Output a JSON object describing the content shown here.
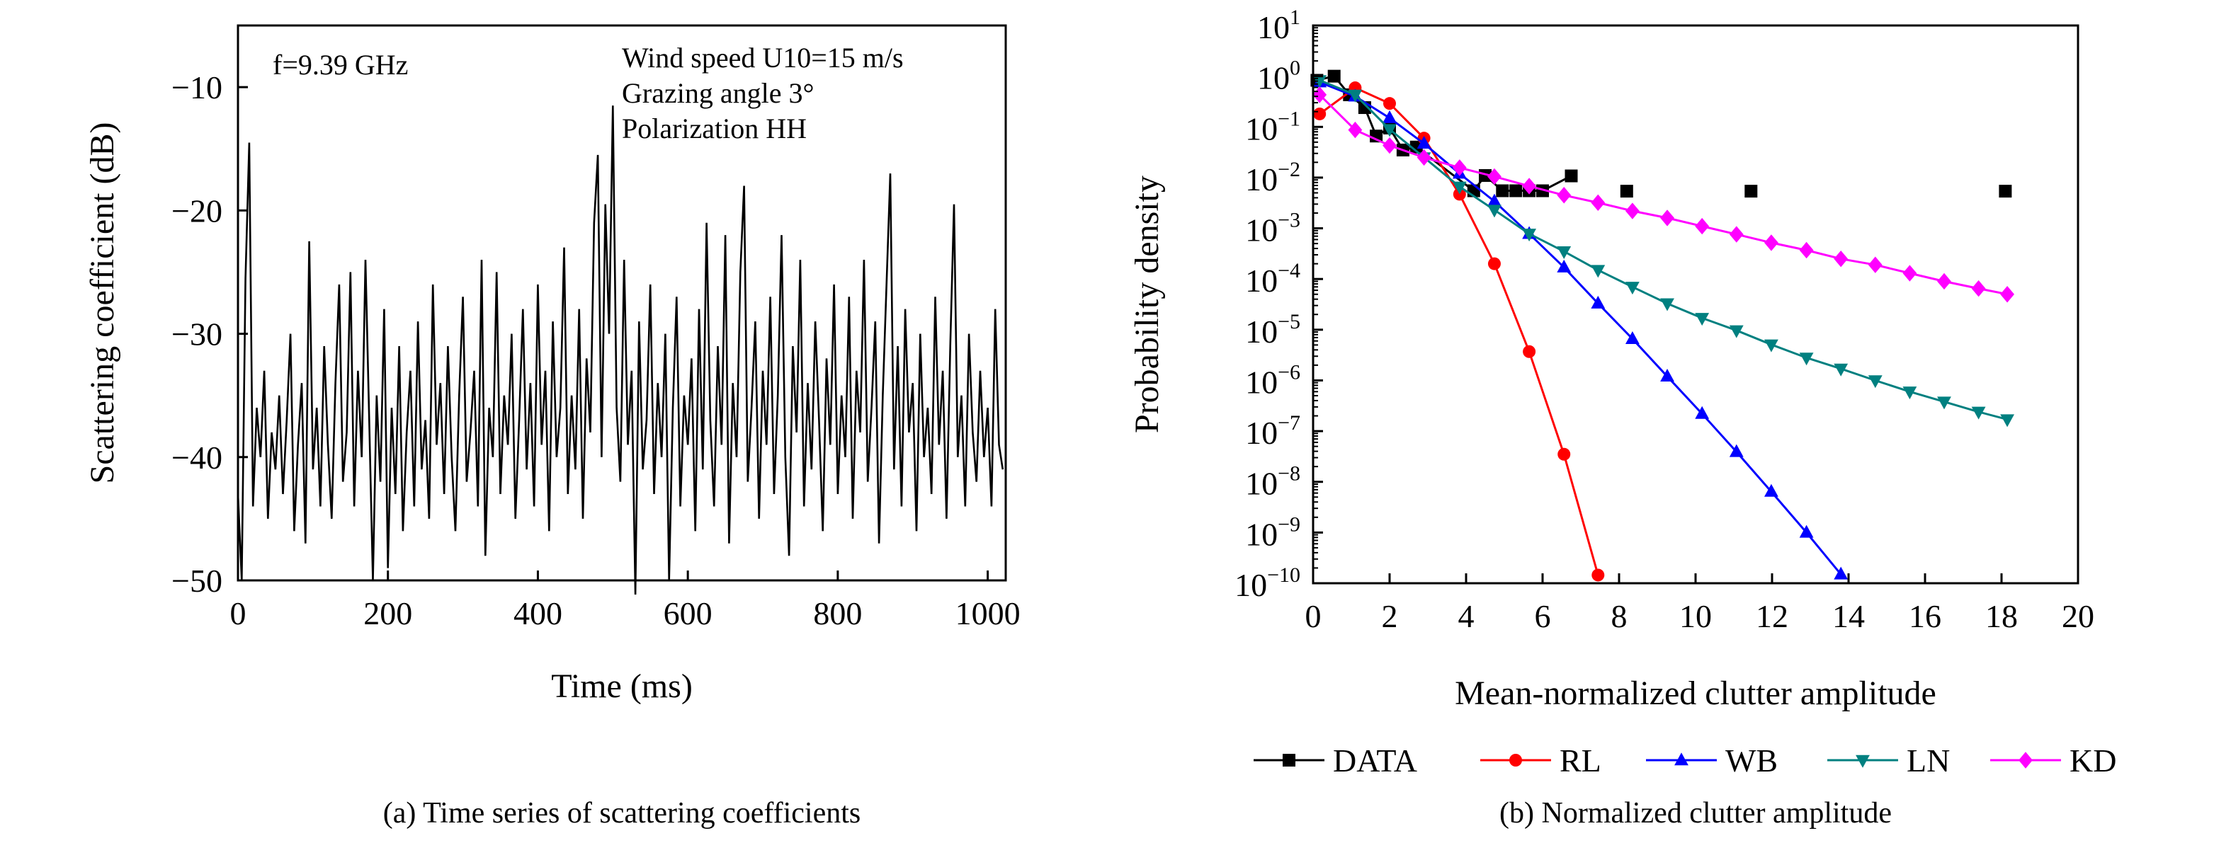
{
  "chart_data": [
    {
      "type": "line",
      "caption": "(a) Time series of scattering coefficients",
      "xlabel": "Time (ms)",
      "ylabel": "Scattering coefficient (dB)",
      "xlim": [
        0,
        1024
      ],
      "ylim": [
        -50,
        -5
      ],
      "xticks": [
        0,
        200,
        400,
        600,
        800,
        1000
      ],
      "xtick_labels": [
        "0",
        "200",
        "400",
        "600",
        "800",
        "1000"
      ],
      "yticks": [
        -10,
        -20,
        -30,
        -40,
        -50
      ],
      "ytick_labels": [
        "−10",
        "−20",
        "−30",
        "−40",
        "−50"
      ],
      "annotations": {
        "frequency": "f=9.39 GHz",
        "wind": "Wind speed U10=15 m/s",
        "grazing": "Grazing angle 3°",
        "polarization": "Polarization HH"
      },
      "x_range": [
        0,
        1020
      ],
      "values": [
        -43,
        -50,
        -25.5,
        -14.5,
        -44,
        -36,
        -40,
        -33,
        -45,
        -38,
        -41,
        -35,
        -43,
        -37,
        -30,
        -46,
        -39,
        -34,
        -47,
        -22.5,
        -41,
        -36,
        -44,
        -31,
        -39,
        -45,
        -34,
        -26,
        -42,
        -38,
        -25,
        -44,
        -33,
        -40,
        -24,
        -37,
        -50,
        -35,
        -42,
        -28,
        -49,
        -36,
        -43,
        -31,
        -46,
        -38,
        -33,
        -44,
        -29,
        -41,
        -37,
        -45,
        -26,
        -39,
        -34,
        -43,
        -31,
        -40,
        -46,
        -35,
        -27,
        -42,
        -38,
        -33,
        -44,
        -24,
        -48,
        -36,
        -40,
        -25,
        -43,
        -35,
        -39,
        -30,
        -45,
        -37,
        -28,
        -41,
        -34,
        -44,
        -26,
        -39,
        -33,
        -46,
        -29,
        -40,
        -36,
        -23,
        -43,
        -35,
        -41,
        -28,
        -45,
        -32,
        -38,
        -21,
        -15.5,
        -40,
        -19.5,
        -30,
        -11.5,
        -36,
        -42,
        -24,
        -39,
        -33,
        -52,
        -29,
        -41,
        -37,
        -26,
        -43,
        -34,
        -40,
        -30,
        -50,
        -36,
        -27,
        -44,
        -35,
        -39,
        -32,
        -46,
        -28,
        -41,
        -21,
        -37,
        -44,
        -31,
        -39,
        -22,
        -47,
        -34,
        -40,
        -25,
        -18,
        -42,
        -36,
        -29,
        -45,
        -33,
        -39,
        -27,
        -43,
        -35,
        -22,
        -40,
        -48,
        -31,
        -38,
        -24,
        -44,
        -34,
        -41,
        -29,
        -37,
        -46,
        -32,
        -39,
        -26,
        -43,
        -35,
        -40,
        -27,
        -45,
        -33,
        -38,
        -24,
        -42,
        -36,
        -29,
        -47,
        -35,
        -26,
        -17,
        -41,
        -31,
        -44,
        -28,
        -38,
        -34,
        -46,
        -30,
        -40,
        -36,
        -43,
        -27,
        -39,
        -33,
        -45,
        -31,
        -19.5,
        -40,
        -35,
        -44,
        -30,
        -38,
        -42,
        -33,
        -40,
        -36,
        -44,
        -28,
        -39,
        -41
      ],
      "color": "#000000"
    },
    {
      "type": "line",
      "caption": "(b) Normalized clutter amplitude",
      "xlabel": "Mean-normalized clutter amplitude",
      "ylabel": "Probability density",
      "xlim": [
        0,
        20
      ],
      "ylim": [
        1e-10,
        10
      ],
      "yscale": "log",
      "xticks": [
        0,
        2,
        4,
        6,
        8,
        10,
        12,
        14,
        16,
        18,
        20
      ],
      "xtick_labels": [
        "0",
        "2",
        "4",
        "6",
        "8",
        "10",
        "12",
        "14",
        "16",
        "18",
        "20"
      ],
      "yticks_exp": [
        1,
        0,
        -1,
        -2,
        -3,
        -4,
        -5,
        -6,
        -7,
        -8,
        -9,
        -10
      ],
      "legend_position": "bottom",
      "series": [
        {
          "name": "DATA",
          "color": "#000000",
          "marker": "square",
          "x": [
            0.1,
            0.55,
            0.95,
            1.35,
            1.65,
            2.0,
            2.35,
            2.7,
            4.2,
            4.5,
            4.95,
            5.3,
            5.65,
            6.0,
            6.75,
            8.2,
            11.45,
            18.1
          ],
          "y": [
            0.83,
            1.0,
            0.43,
            0.24,
            0.066,
            0.095,
            0.035,
            0.04,
            0.0055,
            0.011,
            0.0055,
            0.0055,
            0.0055,
            0.0055,
            0.0108,
            0.0054,
            0.0054,
            0.0054
          ],
          "line_until": 6.9
        },
        {
          "name": "RL",
          "color": "#ff0000",
          "marker": "circle",
          "x": [
            0.17,
            1.1,
            2.0,
            2.9,
            3.83,
            4.74,
            5.65,
            6.56,
            7.45
          ],
          "y": [
            0.18,
            0.59,
            0.29,
            0.06,
            0.0047,
            0.0002,
            3.7e-06,
            3.5e-08,
            1.45e-10
          ]
        },
        {
          "name": "WB",
          "color": "#0000ff",
          "marker": "triangle-up",
          "x": [
            0.17,
            1.1,
            2.0,
            2.9,
            3.83,
            4.74,
            5.65,
            6.56,
            7.45,
            8.35,
            9.26,
            10.17,
            11.07,
            11.98,
            12.9,
            13.8
          ],
          "y": [
            0.76,
            0.4,
            0.15,
            0.047,
            0.012,
            0.0034,
            0.00078,
            0.00017,
            3.3e-05,
            6.6e-06,
            1.2e-06,
            2.2e-07,
            3.9e-08,
            6.4e-09,
            1e-09,
            1.5e-10
          ]
        },
        {
          "name": "LN",
          "color": "#008080",
          "marker": "triangle-down",
          "x": [
            0.17,
            1.1,
            2.0,
            2.9,
            3.83,
            4.74,
            5.65,
            6.56,
            7.45,
            8.35,
            9.26,
            10.17,
            11.07,
            11.98,
            12.9,
            13.8,
            14.7,
            15.6,
            16.5,
            17.4,
            18.15
          ],
          "y": [
            0.83,
            0.43,
            0.09,
            0.025,
            0.0066,
            0.0023,
            0.00078,
            0.00035,
            0.00015,
            7e-05,
            3.3e-05,
            1.7e-05,
            9.7e-06,
            5.1e-06,
            2.8e-06,
            1.7e-06,
            1e-06,
            6e-07,
            3.8e-07,
            2.4e-07,
            1.7e-07
          ]
        },
        {
          "name": "KD",
          "color": "#ff00ff",
          "marker": "diamond",
          "x": [
            0.17,
            1.1,
            2.0,
            2.9,
            3.83,
            4.74,
            5.65,
            6.56,
            7.45,
            8.35,
            9.26,
            10.17,
            11.07,
            11.98,
            12.9,
            13.8,
            14.7,
            15.6,
            16.5,
            17.4,
            18.15
          ],
          "y": [
            0.43,
            0.087,
            0.043,
            0.025,
            0.0157,
            0.0105,
            0.0068,
            0.0045,
            0.0032,
            0.0022,
            0.0016,
            0.0011,
            0.00076,
            0.00052,
            0.00037,
            0.00025,
            0.00019,
            0.00013,
            9e-05,
            6.5e-05,
            5e-05
          ]
        }
      ]
    }
  ]
}
